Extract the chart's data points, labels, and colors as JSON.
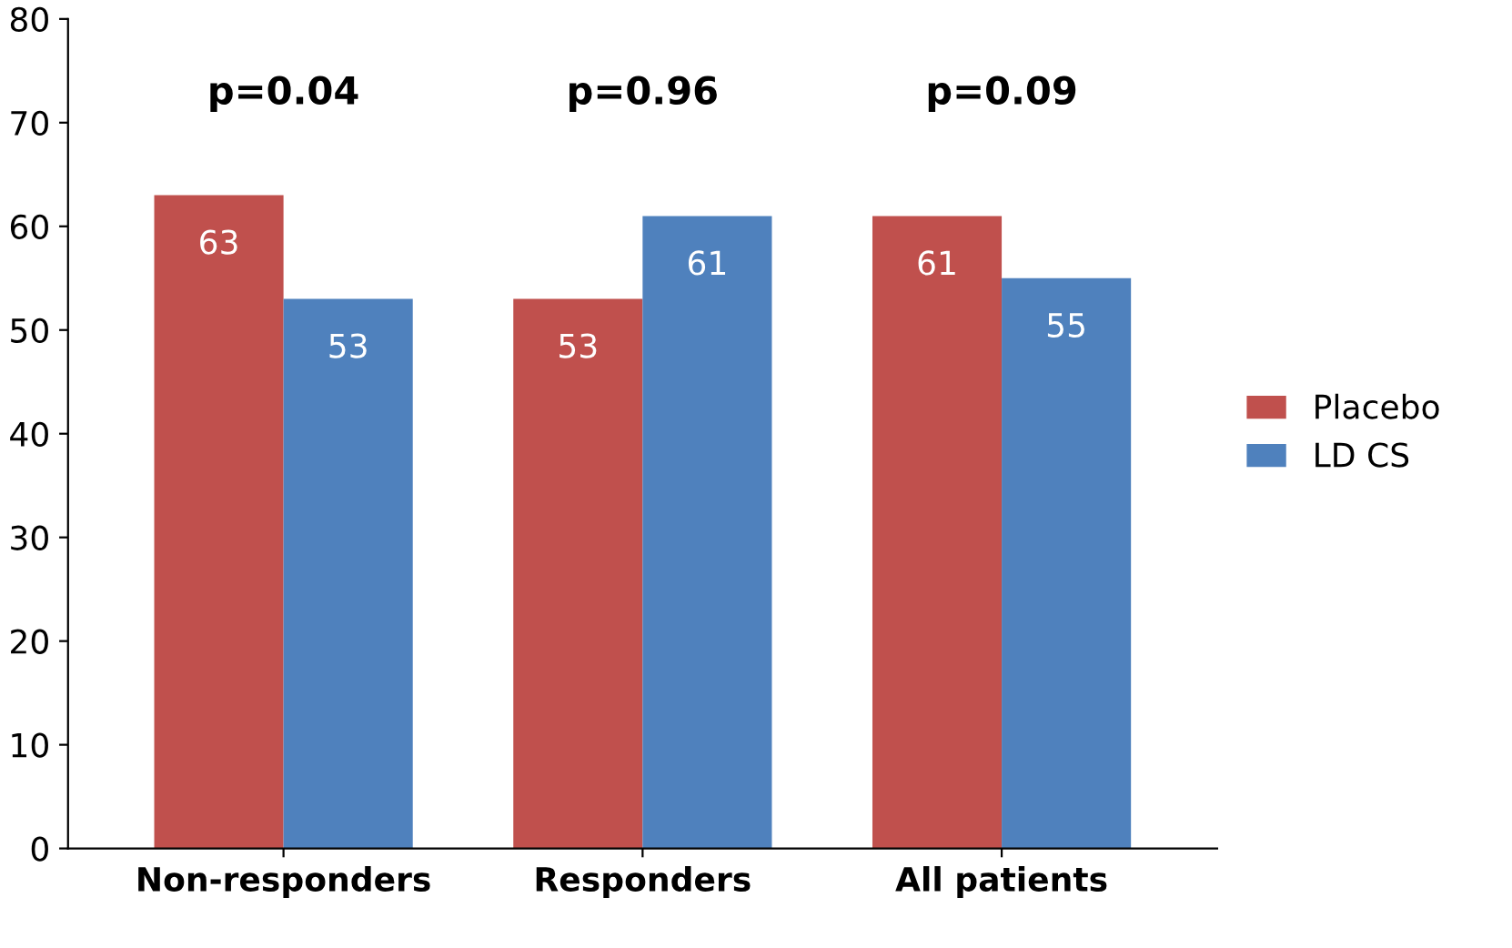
{
  "chart_data": {
    "type": "bar",
    "categories": [
      "Non-responders",
      "Responders",
      "All patients"
    ],
    "series": [
      {
        "name": "Placebo",
        "color": "#c0504d",
        "values": [
          63,
          53,
          61
        ]
      },
      {
        "name": "LD CS",
        "color": "#4f81bd",
        "values": [
          53,
          61,
          55
        ]
      }
    ],
    "ylim": [
      0,
      80
    ],
    "yticks": [
      0,
      10,
      20,
      30,
      40,
      50,
      60,
      70,
      80
    ],
    "data_labels": true,
    "grid": false,
    "legend": "right",
    "annotations": [
      "p=0.04",
      "p=0.96",
      "p=0.09"
    ]
  }
}
